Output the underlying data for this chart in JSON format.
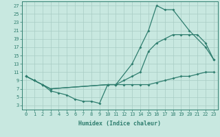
{
  "xlabel": "Humidex (Indice chaleur)",
  "bg_color": "#c8e8e0",
  "line_color": "#2e7d6e",
  "grid_color": "#a8ccc4",
  "xlim": [
    -0.5,
    23.5
  ],
  "ylim": [
    2,
    28
  ],
  "xticks": [
    0,
    1,
    2,
    3,
    4,
    5,
    6,
    7,
    8,
    9,
    10,
    11,
    12,
    13,
    14,
    15,
    16,
    17,
    18,
    19,
    20,
    21,
    22,
    23
  ],
  "yticks": [
    3,
    5,
    7,
    9,
    11,
    13,
    15,
    17,
    19,
    21,
    23,
    25,
    27
  ],
  "line1_x": [
    0,
    1,
    2,
    3,
    10,
    11,
    13,
    14,
    15,
    16,
    17,
    18,
    20,
    22,
    23
  ],
  "line1_y": [
    10,
    9,
    8,
    7,
    8,
    8,
    13,
    17,
    21,
    27,
    26,
    26,
    21,
    17,
    14
  ],
  "line2_x": [
    0,
    1,
    2,
    3,
    10,
    11,
    12,
    13,
    14,
    15,
    16,
    17,
    18,
    19,
    20,
    21,
    22,
    23
  ],
  "line2_y": [
    10,
    9,
    8,
    7,
    8,
    8,
    9,
    10,
    11,
    16,
    18,
    19,
    20,
    20,
    20,
    20,
    18,
    14
  ],
  "line3_x": [
    0,
    1,
    2,
    3,
    4,
    5,
    6,
    7,
    8,
    9,
    10,
    11,
    12,
    13,
    14,
    15,
    16,
    17,
    18,
    19,
    20,
    21,
    22,
    23
  ],
  "line3_y": [
    10,
    9,
    8,
    6.5,
    6,
    5.5,
    4.5,
    4,
    4,
    3.5,
    8,
    8,
    8,
    8,
    8,
    8,
    8.5,
    9,
    9.5,
    10,
    10,
    10.5,
    11,
    11
  ]
}
